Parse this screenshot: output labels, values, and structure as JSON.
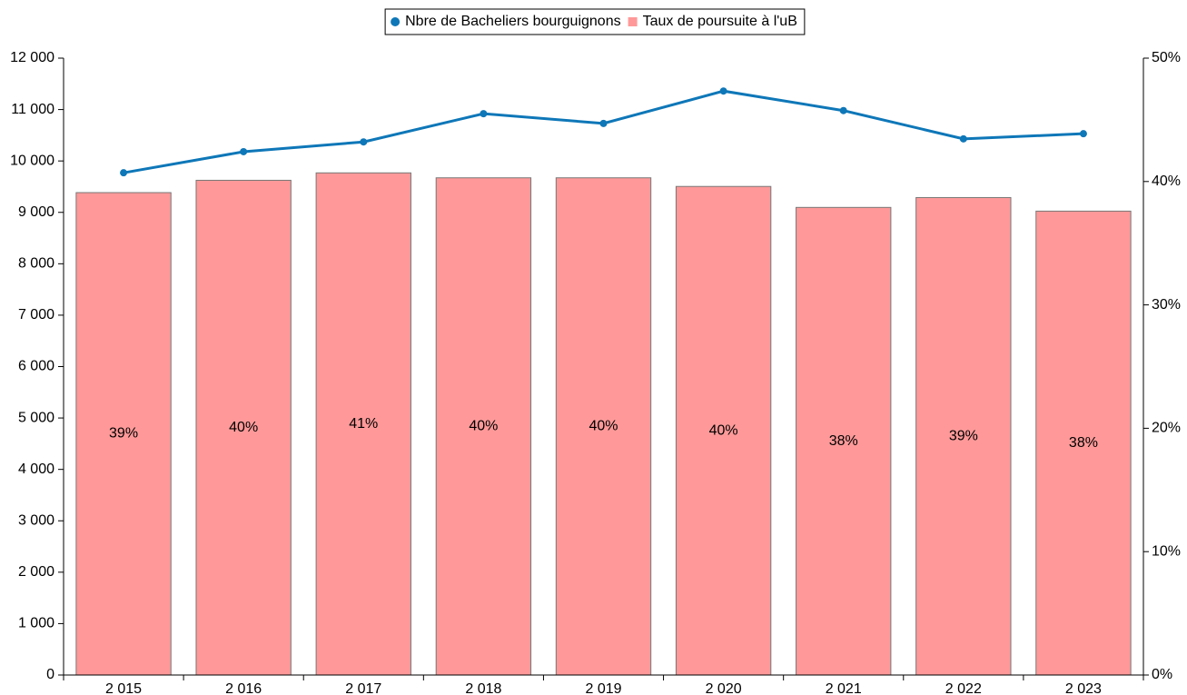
{
  "chart_data": {
    "type": "combo",
    "categories": [
      "2 015",
      "2 016",
      "2 017",
      "2 018",
      "2 019",
      "2 020",
      "2 021",
      "2 022",
      "2 023"
    ],
    "series": [
      {
        "name": "Nbre de Bacheliers bourguignons",
        "type": "line",
        "axis": "y",
        "color": "#0e77b8",
        "values": [
          9770,
          10180,
          10370,
          10920,
          10730,
          11360,
          10980,
          10430,
          10530
        ]
      },
      {
        "name": "Taux de poursuite à l'uB",
        "type": "bar",
        "axis": "y2",
        "color": "#ff9999",
        "values": [
          39.1,
          40.1,
          40.7,
          40.3,
          40.3,
          39.6,
          37.9,
          38.7,
          37.6
        ],
        "value_labels": [
          "39%",
          "40%",
          "41%",
          "40%",
          "40%",
          "40%",
          "38%",
          "39%",
          "38%"
        ]
      }
    ],
    "ylim": [
      0,
      12000
    ],
    "yticks": [
      0,
      {
        "value": 1000,
        "label": "1 000"
      },
      {
        "value": 2000,
        "label": "2 000"
      },
      {
        "value": 3000,
        "label": "3 000"
      },
      {
        "value": 4000,
        "label": "4 000"
      },
      {
        "value": 5000,
        "label": "5 000"
      },
      {
        "value": 6000,
        "label": "6 000"
      },
      {
        "value": 7000,
        "label": "7 000"
      },
      {
        "value": 8000,
        "label": "8 000"
      },
      {
        "value": 9000,
        "label": "9 000"
      },
      {
        "value": 10000,
        "label": "10 000"
      },
      {
        "value": 11000,
        "label": "11 000"
      },
      {
        "value": 12000,
        "label": "12 000"
      }
    ],
    "y2lim": [
      0,
      50
    ],
    "y2ticks": [
      {
        "value": 0,
        "label": "0%"
      },
      {
        "value": 10,
        "label": "10%"
      },
      {
        "value": 20,
        "label": "20%"
      },
      {
        "value": 30,
        "label": "30%"
      },
      {
        "value": 40,
        "label": "40%"
      },
      {
        "value": 50,
        "label": "50%"
      }
    ],
    "legend": "top"
  }
}
